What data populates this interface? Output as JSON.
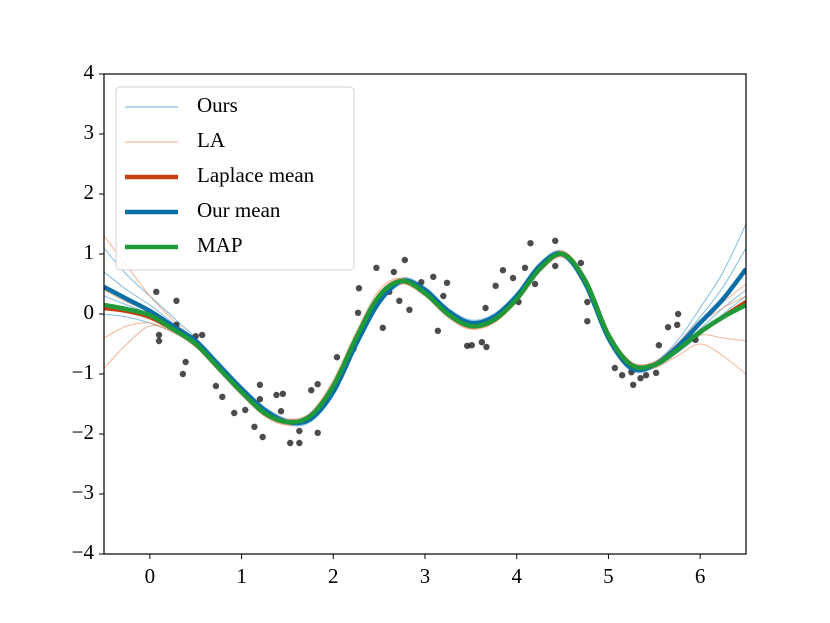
{
  "chart_data": {
    "type": "line",
    "x": [
      -0.5,
      -0.25,
      0,
      0.25,
      0.5,
      0.75,
      1,
      1.25,
      1.5,
      1.75,
      2,
      2.25,
      2.5,
      2.75,
      3,
      3.25,
      3.5,
      3.75,
      4,
      4.25,
      4.5,
      4.75,
      5,
      5.25,
      5.5,
      5.75,
      6,
      6.25,
      6.5
    ],
    "xlim": [
      -0.5,
      6.5
    ],
    "ylim": [
      -4,
      4
    ],
    "xticks": [
      0,
      1,
      2,
      3,
      4,
      5,
      6
    ],
    "yticks": [
      {
        "value": -4,
        "label": "−4"
      },
      {
        "value": -3,
        "label": "−3"
      },
      {
        "value": -2,
        "label": "−2"
      },
      {
        "value": -1,
        "label": "−1"
      },
      0,
      1,
      2,
      3,
      4
    ],
    "legend": "upper left",
    "series": [
      {
        "name": "Ours",
        "color": "#4a9fd4",
        "samples": [
          [
            1.1,
            0.65,
            0.3,
            -0.05,
            -0.4,
            -0.8,
            -1.2,
            -1.55,
            -1.75,
            -1.7,
            -1.25,
            -0.45,
            0.25,
            0.6,
            0.45,
            0.1,
            -0.1,
            0.0,
            0.35,
            0.85,
            1.05,
            0.55,
            -0.35,
            -0.85,
            -0.8,
            -0.45,
            0.1,
            0.7,
            1.5
          ],
          [
            0.0,
            -0.05,
            -0.15,
            -0.3,
            -0.5,
            -0.9,
            -1.3,
            -1.65,
            -1.85,
            -1.8,
            -1.35,
            -0.55,
            0.15,
            0.5,
            0.35,
            0.0,
            -0.2,
            -0.1,
            0.25,
            0.75,
            0.95,
            0.45,
            -0.45,
            -0.95,
            -0.9,
            -0.65,
            -0.35,
            0.0,
            0.3
          ],
          [
            0.7,
            0.4,
            0.15,
            -0.15,
            -0.45,
            -0.85,
            -1.25,
            -1.6,
            -1.8,
            -1.75,
            -1.3,
            -0.5,
            0.2,
            0.55,
            0.4,
            0.05,
            -0.15,
            -0.05,
            0.3,
            0.8,
            1.0,
            0.5,
            -0.4,
            -0.9,
            -0.85,
            -0.5,
            -0.05,
            0.45,
            1.1
          ],
          [
            0.3,
            0.15,
            0.0,
            -0.2,
            -0.45,
            -0.85,
            -1.25,
            -1.6,
            -1.8,
            -1.75,
            -1.3,
            -0.5,
            0.2,
            0.55,
            0.4,
            0.05,
            -0.15,
            -0.05,
            0.3,
            0.8,
            1.0,
            0.5,
            -0.4,
            -0.9,
            -0.85,
            -0.6,
            -0.25,
            0.1,
            0.4
          ]
        ]
      },
      {
        "name": "LA",
        "color": "#f0956a",
        "samples": [
          [
            1.3,
            0.8,
            0.3,
            -0.1,
            -0.45,
            -0.85,
            -1.3,
            -1.65,
            -1.8,
            -1.65,
            -1.1,
            -0.3,
            0.4,
            0.6,
            0.35,
            -0.05,
            -0.25,
            -0.1,
            0.3,
            0.8,
            1.05,
            0.6,
            -0.3,
            -0.8,
            -0.8,
            -0.5,
            -0.15,
            0.1,
            0.3
          ],
          [
            -0.9,
            -0.5,
            -0.2,
            -0.3,
            -0.55,
            -0.95,
            -1.35,
            -1.7,
            -1.85,
            -1.75,
            -1.25,
            -0.45,
            0.25,
            0.5,
            0.3,
            -0.05,
            -0.25,
            -0.15,
            0.2,
            0.7,
            0.95,
            0.5,
            -0.4,
            -0.9,
            -0.9,
            -0.7,
            -0.5,
            -0.7,
            -1.0
          ],
          [
            0.4,
            0.2,
            0.05,
            -0.2,
            -0.5,
            -0.9,
            -1.3,
            -1.6,
            -1.75,
            -1.65,
            -1.15,
            -0.35,
            0.35,
            0.6,
            0.4,
            0.05,
            -0.15,
            -0.05,
            0.3,
            0.8,
            1.05,
            0.6,
            -0.3,
            -0.8,
            -0.8,
            -0.5,
            -0.1,
            0.2,
            0.5
          ],
          [
            -0.4,
            -0.2,
            -0.15,
            -0.3,
            -0.55,
            -0.9,
            -1.3,
            -1.7,
            -1.85,
            -1.75,
            -1.25,
            -0.45,
            0.25,
            0.5,
            0.3,
            -0.05,
            -0.25,
            -0.15,
            0.2,
            0.7,
            0.95,
            0.5,
            -0.4,
            -0.9,
            -0.85,
            -0.55,
            -0.35,
            -0.4,
            -0.45
          ]
        ]
      },
      {
        "name": "Laplace mean",
        "color": "#c4410f",
        "values": [
          0.1,
          0.05,
          -0.05,
          -0.25,
          -0.5,
          -0.9,
          -1.3,
          -1.65,
          -1.8,
          -1.7,
          -1.2,
          -0.4,
          0.3,
          0.55,
          0.35,
          0.0,
          -0.2,
          -0.1,
          0.25,
          0.75,
          1.0,
          0.55,
          -0.35,
          -0.85,
          -0.85,
          -0.6,
          -0.3,
          -0.05,
          0.2
        ]
      },
      {
        "name": "Our mean",
        "color": "#0a6fa6",
        "values": [
          0.45,
          0.25,
          0.05,
          -0.2,
          -0.45,
          -0.85,
          -1.25,
          -1.6,
          -1.8,
          -1.75,
          -1.3,
          -0.5,
          0.2,
          0.55,
          0.4,
          0.05,
          -0.15,
          -0.05,
          0.3,
          0.8,
          1.0,
          0.5,
          -0.4,
          -0.9,
          -0.85,
          -0.55,
          -0.15,
          0.25,
          0.75
        ]
      },
      {
        "name": "MAP",
        "color": "#1e9a3a",
        "values": [
          0.15,
          0.08,
          -0.02,
          -0.25,
          -0.5,
          -0.9,
          -1.3,
          -1.65,
          -1.8,
          -1.7,
          -1.2,
          -0.4,
          0.3,
          0.55,
          0.35,
          0.0,
          -0.2,
          -0.1,
          0.25,
          0.75,
          1.0,
          0.55,
          -0.35,
          -0.85,
          -0.85,
          -0.6,
          -0.3,
          -0.05,
          0.15
        ]
      }
    ],
    "points": {
      "color": "#1a1a1a",
      "x": [
        0.07,
        0.1,
        0.1,
        0.29,
        0.29,
        0.39,
        0.36,
        0.5,
        0.57,
        0.72,
        0.79,
        0.89,
        0.92,
        1.04,
        1.14,
        1.2,
        1.23,
        1.2,
        1.38,
        1.43,
        1.53,
        1.63,
        1.63,
        1.45,
        1.76,
        1.83,
        1.83,
        1.91,
        2.04,
        2.13,
        2.22,
        2.27,
        2.28,
        2.47,
        2.54,
        2.61,
        2.66,
        2.72,
        2.78,
        2.83,
        2.96,
        3.09,
        3.14,
        3.24,
        3.2,
        3.46,
        3.51,
        3.62,
        3.67,
        3.66,
        3.77,
        3.85,
        3.96,
        4.02,
        4.09,
        4.15,
        4.2,
        4.42,
        4.42,
        4.7,
        4.77,
        4.77,
        5.07,
        5.15,
        5.25,
        5.27,
        5.35,
        5.41,
        5.52,
        5.55,
        5.65,
        5.76,
        5.75,
        5.91,
        5.95
      ],
      "y": [
        0.37,
        -0.35,
        -0.45,
        0.22,
        -0.18,
        -0.8,
        -1.0,
        -0.37,
        -0.35,
        -1.2,
        -1.38,
        -1.1,
        -1.65,
        -1.6,
        -1.88,
        -1.18,
        -2.05,
        -1.42,
        -1.35,
        -1.62,
        -2.15,
        -2.15,
        -1.95,
        -1.33,
        -1.27,
        -1.17,
        -1.98,
        -1.47,
        -0.72,
        -0.87,
        -0.58,
        0.02,
        0.43,
        0.77,
        -0.23,
        0.37,
        0.7,
        0.22,
        0.9,
        0.07,
        0.53,
        0.62,
        -0.28,
        0.52,
        0.3,
        -0.53,
        -0.52,
        -0.47,
        -0.55,
        0.1,
        0.47,
        0.73,
        0.6,
        0.2,
        0.77,
        1.18,
        0.5,
        1.22,
        0.8,
        0.85,
        0.2,
        -0.12,
        -0.9,
        -1.02,
        -0.97,
        -1.18,
        -1.07,
        -1.02,
        -0.98,
        -0.52,
        -0.22,
        0.0,
        -0.18,
        -0.4,
        -0.43
      ]
    }
  }
}
